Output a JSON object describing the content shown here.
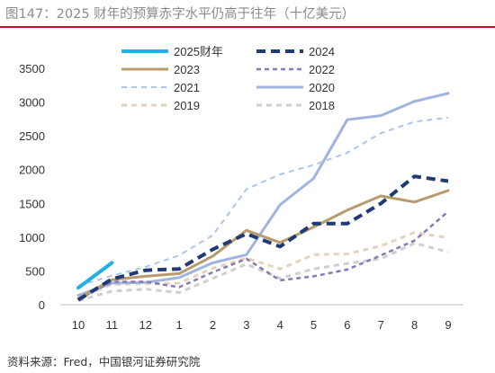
{
  "title": "图147：2025 财年的预算赤字水平仍高于往年（十亿美元）",
  "source": "资料来源：Fred，中国银河证券研究院",
  "chart_data": {
    "type": "line",
    "categories": [
      "10",
      "11",
      "12",
      "1",
      "2",
      "3",
      "4",
      "5",
      "6",
      "7",
      "8",
      "9"
    ],
    "y_ticks": [
      "0",
      "500",
      "1000",
      "1500",
      "2000",
      "2500",
      "3000",
      "3500"
    ],
    "ylim": [
      0,
      3500
    ],
    "grid": false,
    "legend_placement": "top",
    "series": [
      {
        "name": "2025财年",
        "color": "#1fb0e6",
        "dash": "solid",
        "width": 4,
        "values": [
          250,
          620,
          null,
          null,
          null,
          null,
          null,
          null,
          null,
          null,
          null,
          null
        ]
      },
      {
        "name": "2024",
        "color": "#1f3a75",
        "dash": "10,6",
        "width": 4,
        "values": [
          70,
          380,
          510,
          530,
          820,
          1050,
          860,
          1200,
          1200,
          1500,
          1900,
          1830
        ]
      },
      {
        "name": "2023",
        "color": "#b89a6c",
        "dash": "solid",
        "width": 3,
        "values": [
          90,
          370,
          420,
          460,
          720,
          1100,
          920,
          1150,
          1400,
          1610,
          1520,
          1690
        ]
      },
      {
        "name": "2022",
        "color": "#8878b8",
        "dash": "5,4",
        "width": 2.5,
        "values": [
          80,
          340,
          340,
          260,
          480,
          680,
          360,
          420,
          520,
          730,
          950,
          1380
        ]
      },
      {
        "name": "2021",
        "color": "#aec4ea",
        "dash": "6,5",
        "width": 2,
        "values": [
          280,
          430,
          560,
          730,
          1030,
          1710,
          1930,
          2070,
          2250,
          2540,
          2710,
          2770
        ]
      },
      {
        "name": "2020",
        "color": "#9fb4df",
        "dash": "solid",
        "width": 3,
        "values": [
          140,
          320,
          330,
          400,
          620,
          740,
          1480,
          1870,
          2740,
          2800,
          3010,
          3130
        ]
      },
      {
        "name": "2019",
        "color": "#e4d3ba",
        "dash": "6,5",
        "width": 3,
        "values": [
          100,
          300,
          310,
          320,
          540,
          690,
          530,
          740,
          750,
          870,
          1070,
          990
        ]
      },
      {
        "name": "2018",
        "color": "#cfcfcf",
        "dash": "6,5",
        "width": 3,
        "values": [
          60,
          200,
          230,
          180,
          390,
          600,
          390,
          530,
          610,
          680,
          910,
          780
        ]
      }
    ]
  }
}
